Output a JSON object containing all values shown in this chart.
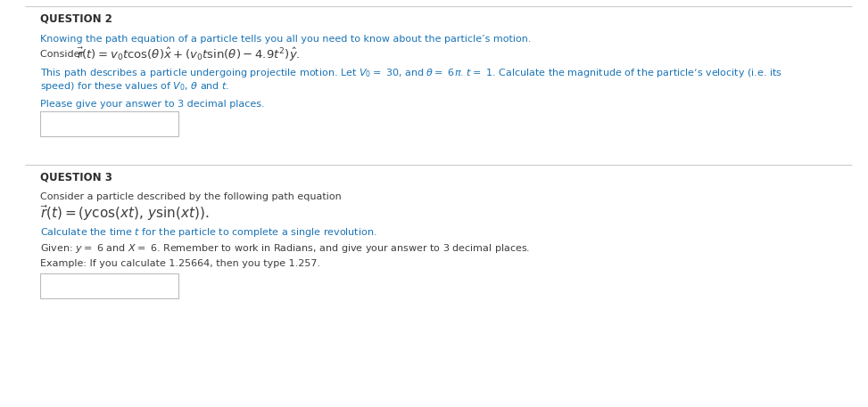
{
  "bg_color": "#ffffff",
  "q2_header": "QUESTION 2",
  "q3_header": "QUESTION 3",
  "q2_line1_blue": "Knowing the path equation of a particle tells you all you need to know about the particle’s motion.",
  "q3_line1_black": "Consider a particle described by the following path equation",
  "q3_calc_blue": "Calculate the time $t$ for the particle to complete a single revolution.",
  "q3_given_black": "Given: $y =$ 6 and $X =$ 6. Remember to work in Radians, and give your answer to 3 decimal places.",
  "q3_example_black": "Example: If you calculate 1.25664, then you type 1.257.",
  "q2_prompt_blue": "Please give your answer to 3 decimal places.",
  "text_color_blue": "#1a73b5",
  "text_color_black": "#3d3d3d",
  "header_text_color": "#2d2d2d",
  "line_color": "#cccccc",
  "box_color": "#bbbbbb",
  "font_size_header": 8.5,
  "font_size_body": 8.0,
  "font_size_formula_q2": 9.5,
  "font_size_formula_q3": 11.0,
  "q2_body_line1": "This path describes a particle undergoing projectile motion. Let $V_0 =$ 30, and $\\theta =$ 6$\\pi$. $t =$ 1. Calculate the magnitude of the particle’s velocity (i.e. its",
  "q2_body_line2": "speed) for these values of $V_0$, $\\theta$ and $t$."
}
